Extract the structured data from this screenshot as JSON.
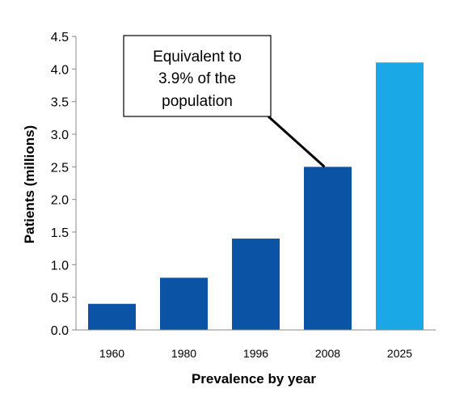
{
  "chart_data": {
    "type": "bar",
    "categories": [
      "1960",
      "1980",
      "1996",
      "2008",
      "2025"
    ],
    "values": [
      0.4,
      0.8,
      1.4,
      2.5,
      4.1
    ],
    "colors": [
      "#0B53A5",
      "#0B53A5",
      "#0B53A5",
      "#0B53A5",
      "#1BA8E6"
    ],
    "xlabel": "Prevalence by year",
    "ylabel": "Patients (millions)",
    "ylim": [
      0,
      4.5
    ],
    "yticks": [
      "0.0",
      "0.5",
      "1.0",
      "1.5",
      "2.0",
      "2.5",
      "3.0",
      "3.5",
      "4.0",
      "4.5"
    ],
    "grid": false,
    "annotation": {
      "lines": [
        "Equivalent to",
        "3.9% of the",
        "population"
      ],
      "target_category": "2008"
    }
  }
}
